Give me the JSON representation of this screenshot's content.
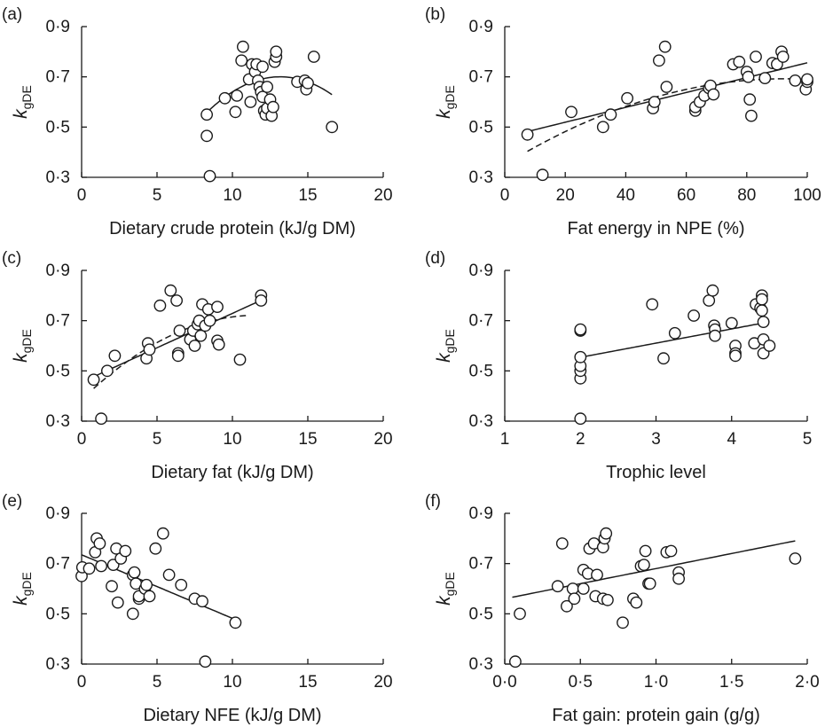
{
  "chart_data": [
    {
      "type": "scatter",
      "panel_label": "(a)",
      "xlabel": "Dietary crude protein (kJ/g DM)",
      "ylabel_main": "k",
      "ylabel_sub": "gDE",
      "xlim": [
        0,
        20
      ],
      "ylim": [
        0.3,
        0.9
      ],
      "xticks": [
        0,
        5,
        10,
        15,
        20
      ],
      "xtick_labels": [
        "0",
        "5",
        "10",
        "15",
        "20"
      ],
      "yticks": [
        0.3,
        0.5,
        0.7,
        0.9
      ],
      "ytick_labels": [
        "0·3",
        "0·5",
        "0·7",
        "0·9"
      ],
      "points": [
        [
          8.3,
          0.55
        ],
        [
          8.3,
          0.465
        ],
        [
          8.5,
          0.305
        ],
        [
          9.5,
          0.615
        ],
        [
          10.2,
          0.56
        ],
        [
          10.3,
          0.625
        ],
        [
          10.6,
          0.765
        ],
        [
          10.7,
          0.82
        ],
        [
          11.1,
          0.69
        ],
        [
          11.2,
          0.6
        ],
        [
          11.3,
          0.75
        ],
        [
          11.5,
          0.72
        ],
        [
          11.6,
          0.75
        ],
        [
          11.7,
          0.685
        ],
        [
          11.8,
          0.66
        ],
        [
          11.9,
          0.64
        ],
        [
          12.0,
          0.74
        ],
        [
          12.0,
          0.62
        ],
        [
          12.1,
          0.565
        ],
        [
          12.2,
          0.55
        ],
        [
          12.3,
          0.66
        ],
        [
          12.3,
          0.575
        ],
        [
          12.5,
          0.61
        ],
        [
          12.6,
          0.545
        ],
        [
          12.7,
          0.58
        ],
        [
          12.8,
          0.76
        ],
        [
          12.9,
          0.78
        ],
        [
          12.9,
          0.8
        ],
        [
          14.3,
          0.68
        ],
        [
          14.8,
          0.685
        ],
        [
          14.9,
          0.65
        ],
        [
          15.0,
          0.675
        ],
        [
          15.4,
          0.78
        ],
        [
          16.6,
          0.5
        ]
      ],
      "fits": [
        {
          "style": "solid",
          "kind": "quadratic",
          "coeffs": [
            -0.006,
            0.158,
            -0.34
          ],
          "xrange": [
            8.3,
            16.6
          ]
        }
      ]
    },
    {
      "type": "scatter",
      "panel_label": "(b)",
      "xlabel": "Fat energy in NPE (%)",
      "ylabel_main": "k",
      "ylabel_sub": "gDE",
      "xlim": [
        0,
        100
      ],
      "ylim": [
        0.3,
        0.9
      ],
      "xticks": [
        0,
        20,
        40,
        60,
        80,
        100
      ],
      "xtick_labels": [
        "0",
        "20",
        "40",
        "60",
        "80",
        "100"
      ],
      "yticks": [
        0.3,
        0.5,
        0.7,
        0.9
      ],
      "ytick_labels": [
        "0·3",
        "0·5",
        "0·7",
        "0·9"
      ],
      "points": [
        [
          7.5,
          0.47
        ],
        [
          12.5,
          0.31
        ],
        [
          22,
          0.56
        ],
        [
          32.5,
          0.5
        ],
        [
          35,
          0.55
        ],
        [
          40.5,
          0.615
        ],
        [
          49,
          0.575
        ],
        [
          49.5,
          0.6
        ],
        [
          51,
          0.765
        ],
        [
          53,
          0.82
        ],
        [
          53.5,
          0.66
        ],
        [
          63,
          0.565
        ],
        [
          63,
          0.58
        ],
        [
          64.5,
          0.6
        ],
        [
          66,
          0.625
        ],
        [
          67.5,
          0.655
        ],
        [
          68,
          0.665
        ],
        [
          69,
          0.63
        ],
        [
          75.5,
          0.75
        ],
        [
          77.5,
          0.76
        ],
        [
          80,
          0.72
        ],
        [
          80.5,
          0.7
        ],
        [
          81,
          0.61
        ],
        [
          81.5,
          0.545
        ],
        [
          83,
          0.78
        ],
        [
          86,
          0.695
        ],
        [
          88.5,
          0.755
        ],
        [
          90,
          0.75
        ],
        [
          91.5,
          0.8
        ],
        [
          92,
          0.78
        ],
        [
          96,
          0.685
        ],
        [
          99.5,
          0.65
        ],
        [
          100,
          0.68
        ],
        [
          100,
          0.69
        ]
      ],
      "fits": [
        {
          "style": "solid",
          "kind": "linear",
          "coeffs": [
            0.00296,
            0.46
          ],
          "xrange": [
            7.5,
            100
          ]
        },
        {
          "style": "dashed",
          "kind": "quadratic",
          "coeffs": [
            -4e-05,
            0.0074,
            0.35
          ],
          "xrange": [
            7.5,
            100
          ]
        }
      ]
    },
    {
      "type": "scatter",
      "panel_label": "(c)",
      "xlabel": "Dietary fat (kJ/g DM)",
      "ylabel_main": "k",
      "ylabel_sub": "gDE",
      "xlim": [
        0,
        20
      ],
      "ylim": [
        0.3,
        0.9
      ],
      "xticks": [
        0,
        5,
        10,
        15,
        20
      ],
      "xtick_labels": [
        "0",
        "5",
        "10",
        "15",
        "20"
      ],
      "yticks": [
        0.3,
        0.5,
        0.7,
        0.9
      ],
      "ytick_labels": [
        "0·3",
        "0·5",
        "0·7",
        "0·9"
      ],
      "points": [
        [
          0.8,
          0.465
        ],
        [
          1.3,
          0.31
        ],
        [
          1.7,
          0.5
        ],
        [
          2.2,
          0.56
        ],
        [
          4.3,
          0.55
        ],
        [
          4.4,
          0.61
        ],
        [
          4.5,
          0.585
        ],
        [
          5.2,
          0.76
        ],
        [
          5.9,
          0.82
        ],
        [
          6.3,
          0.78
        ],
        [
          6.4,
          0.57
        ],
        [
          6.4,
          0.56
        ],
        [
          6.5,
          0.66
        ],
        [
          7.2,
          0.625
        ],
        [
          7.4,
          0.66
        ],
        [
          7.5,
          0.6
        ],
        [
          7.7,
          0.685
        ],
        [
          7.8,
          0.7
        ],
        [
          7.9,
          0.64
        ],
        [
          8.0,
          0.765
        ],
        [
          8.2,
          0.68
        ],
        [
          8.4,
          0.745
        ],
        [
          8.5,
          0.7
        ],
        [
          9.0,
          0.755
        ],
        [
          9.0,
          0.62
        ],
        [
          9.1,
          0.605
        ],
        [
          10.5,
          0.545
        ],
        [
          11.9,
          0.8
        ],
        [
          11.9,
          0.78
        ]
      ],
      "fits": [
        {
          "style": "solid",
          "kind": "linear",
          "coeffs": [
            0.0274,
            0.455
          ],
          "xrange": [
            0.8,
            12
          ]
        },
        {
          "style": "dashed",
          "kind": "quadratic",
          "coeffs": [
            -0.0025,
            0.058,
            0.385
          ],
          "xrange": [
            0.8,
            11
          ]
        }
      ]
    },
    {
      "type": "scatter",
      "panel_label": "(d)",
      "xlabel": "Trophic level",
      "ylabel_main": "k",
      "ylabel_sub": "gDE",
      "xlim": [
        1,
        5
      ],
      "ylim": [
        0.3,
        0.9
      ],
      "xticks": [
        1,
        2,
        3,
        4,
        5
      ],
      "xtick_labels": [
        "1",
        "2",
        "3",
        "4",
        "5"
      ],
      "yticks": [
        0.3,
        0.5,
        0.7,
        0.9
      ],
      "ytick_labels": [
        "0·3",
        "0·5",
        "0·7",
        "0·9"
      ],
      "points": [
        [
          2.0,
          0.31
        ],
        [
          2.0,
          0.47
        ],
        [
          2.0,
          0.5
        ],
        [
          2.0,
          0.52
        ],
        [
          2.0,
          0.555
        ],
        [
          2.0,
          0.66
        ],
        [
          2.0,
          0.665
        ],
        [
          2.95,
          0.765
        ],
        [
          3.1,
          0.55
        ],
        [
          3.25,
          0.65
        ],
        [
          3.5,
          0.72
        ],
        [
          3.7,
          0.78
        ],
        [
          3.75,
          0.82
        ],
        [
          3.77,
          0.68
        ],
        [
          3.78,
          0.665
        ],
        [
          3.78,
          0.64
        ],
        [
          4.0,
          0.69
        ],
        [
          4.05,
          0.6
        ],
        [
          4.05,
          0.57
        ],
        [
          4.05,
          0.56
        ],
        [
          4.3,
          0.61
        ],
        [
          4.32,
          0.765
        ],
        [
          4.38,
          0.75
        ],
        [
          4.4,
          0.8
        ],
        [
          4.4,
          0.785
        ],
        [
          4.4,
          0.74
        ],
        [
          4.42,
          0.695
        ],
        [
          4.42,
          0.625
        ],
        [
          4.42,
          0.57
        ],
        [
          4.5,
          0.6
        ]
      ],
      "fits": [
        {
          "style": "solid",
          "kind": "linear",
          "coeffs": [
            0.0565,
            0.441
          ],
          "xrange": [
            2,
            4.5
          ]
        }
      ]
    },
    {
      "type": "scatter",
      "panel_label": "(e)",
      "xlabel": "Dietary NFE (kJ/g DM)",
      "ylabel_main": "k",
      "ylabel_sub": "gDE",
      "xlim": [
        0,
        20
      ],
      "ylim": [
        0.3,
        0.9
      ],
      "xticks": [
        0,
        5,
        10,
        15,
        20
      ],
      "xtick_labels": [
        "0",
        "5",
        "10",
        "15",
        "20"
      ],
      "yticks": [
        0.3,
        0.5,
        0.7,
        0.9
      ],
      "ytick_labels": [
        "0·3",
        "0·5",
        "0·7",
        "0·9"
      ],
      "points": [
        [
          0.0,
          0.65
        ],
        [
          0.05,
          0.685
        ],
        [
          0.5,
          0.68
        ],
        [
          0.9,
          0.745
        ],
        [
          1.0,
          0.8
        ],
        [
          1.2,
          0.78
        ],
        [
          1.3,
          0.69
        ],
        [
          2.0,
          0.61
        ],
        [
          2.1,
          0.695
        ],
        [
          2.3,
          0.76
        ],
        [
          2.4,
          0.545
        ],
        [
          2.6,
          0.72
        ],
        [
          2.9,
          0.75
        ],
        [
          3.4,
          0.5
        ],
        [
          3.4,
          0.655
        ],
        [
          3.5,
          0.665
        ],
        [
          3.6,
          0.62
        ],
        [
          3.8,
          0.56
        ],
        [
          3.8,
          0.57
        ],
        [
          4.2,
          0.6
        ],
        [
          4.3,
          0.615
        ],
        [
          4.5,
          0.57
        ],
        [
          4.9,
          0.76
        ],
        [
          5.4,
          0.82
        ],
        [
          5.8,
          0.655
        ],
        [
          6.6,
          0.615
        ],
        [
          7.5,
          0.56
        ],
        [
          8.0,
          0.55
        ],
        [
          8.2,
          0.31
        ],
        [
          10.2,
          0.465
        ]
      ],
      "fits": [
        {
          "style": "solid",
          "kind": "linear",
          "coeffs": [
            -0.0253,
            0.735
          ],
          "xrange": [
            0,
            10.2
          ]
        }
      ]
    },
    {
      "type": "scatter",
      "panel_label": "(f)",
      "xlabel": "Fat gain: protein gain (g/g)",
      "ylabel_main": "k",
      "ylabel_sub": "gDE",
      "xlim": [
        0,
        2
      ],
      "ylim": [
        0.3,
        0.9
      ],
      "xticks": [
        0,
        0.5,
        1,
        1.5,
        2
      ],
      "xtick_labels": [
        "0·0",
        "0·5",
        "1·0",
        "1·5",
        "2·0"
      ],
      "yticks": [
        0.3,
        0.5,
        0.7,
        0.9
      ],
      "ytick_labels": [
        "0·3",
        "0·5",
        "0·7",
        "0·9"
      ],
      "points": [
        [
          0.07,
          0.31
        ],
        [
          0.1,
          0.5
        ],
        [
          0.35,
          0.61
        ],
        [
          0.38,
          0.78
        ],
        [
          0.41,
          0.53
        ],
        [
          0.45,
          0.6
        ],
        [
          0.46,
          0.56
        ],
        [
          0.52,
          0.6
        ],
        [
          0.52,
          0.675
        ],
        [
          0.55,
          0.66
        ],
        [
          0.56,
          0.76
        ],
        [
          0.59,
          0.78
        ],
        [
          0.6,
          0.57
        ],
        [
          0.61,
          0.655
        ],
        [
          0.65,
          0.56
        ],
        [
          0.65,
          0.765
        ],
        [
          0.66,
          0.8
        ],
        [
          0.67,
          0.82
        ],
        [
          0.68,
          0.555
        ],
        [
          0.78,
          0.465
        ],
        [
          0.85,
          0.56
        ],
        [
          0.87,
          0.545
        ],
        [
          0.9,
          0.69
        ],
        [
          0.92,
          0.695
        ],
        [
          0.93,
          0.75
        ],
        [
          0.95,
          0.62
        ],
        [
          0.96,
          0.62
        ],
        [
          1.07,
          0.745
        ],
        [
          1.1,
          0.75
        ],
        [
          1.15,
          0.665
        ],
        [
          1.15,
          0.64
        ],
        [
          1.92,
          0.72
        ]
      ],
      "fits": [
        {
          "style": "solid",
          "kind": "linear",
          "coeffs": [
            0.12,
            0.56
          ],
          "xrange": [
            0.05,
            1.92
          ]
        }
      ]
    }
  ]
}
